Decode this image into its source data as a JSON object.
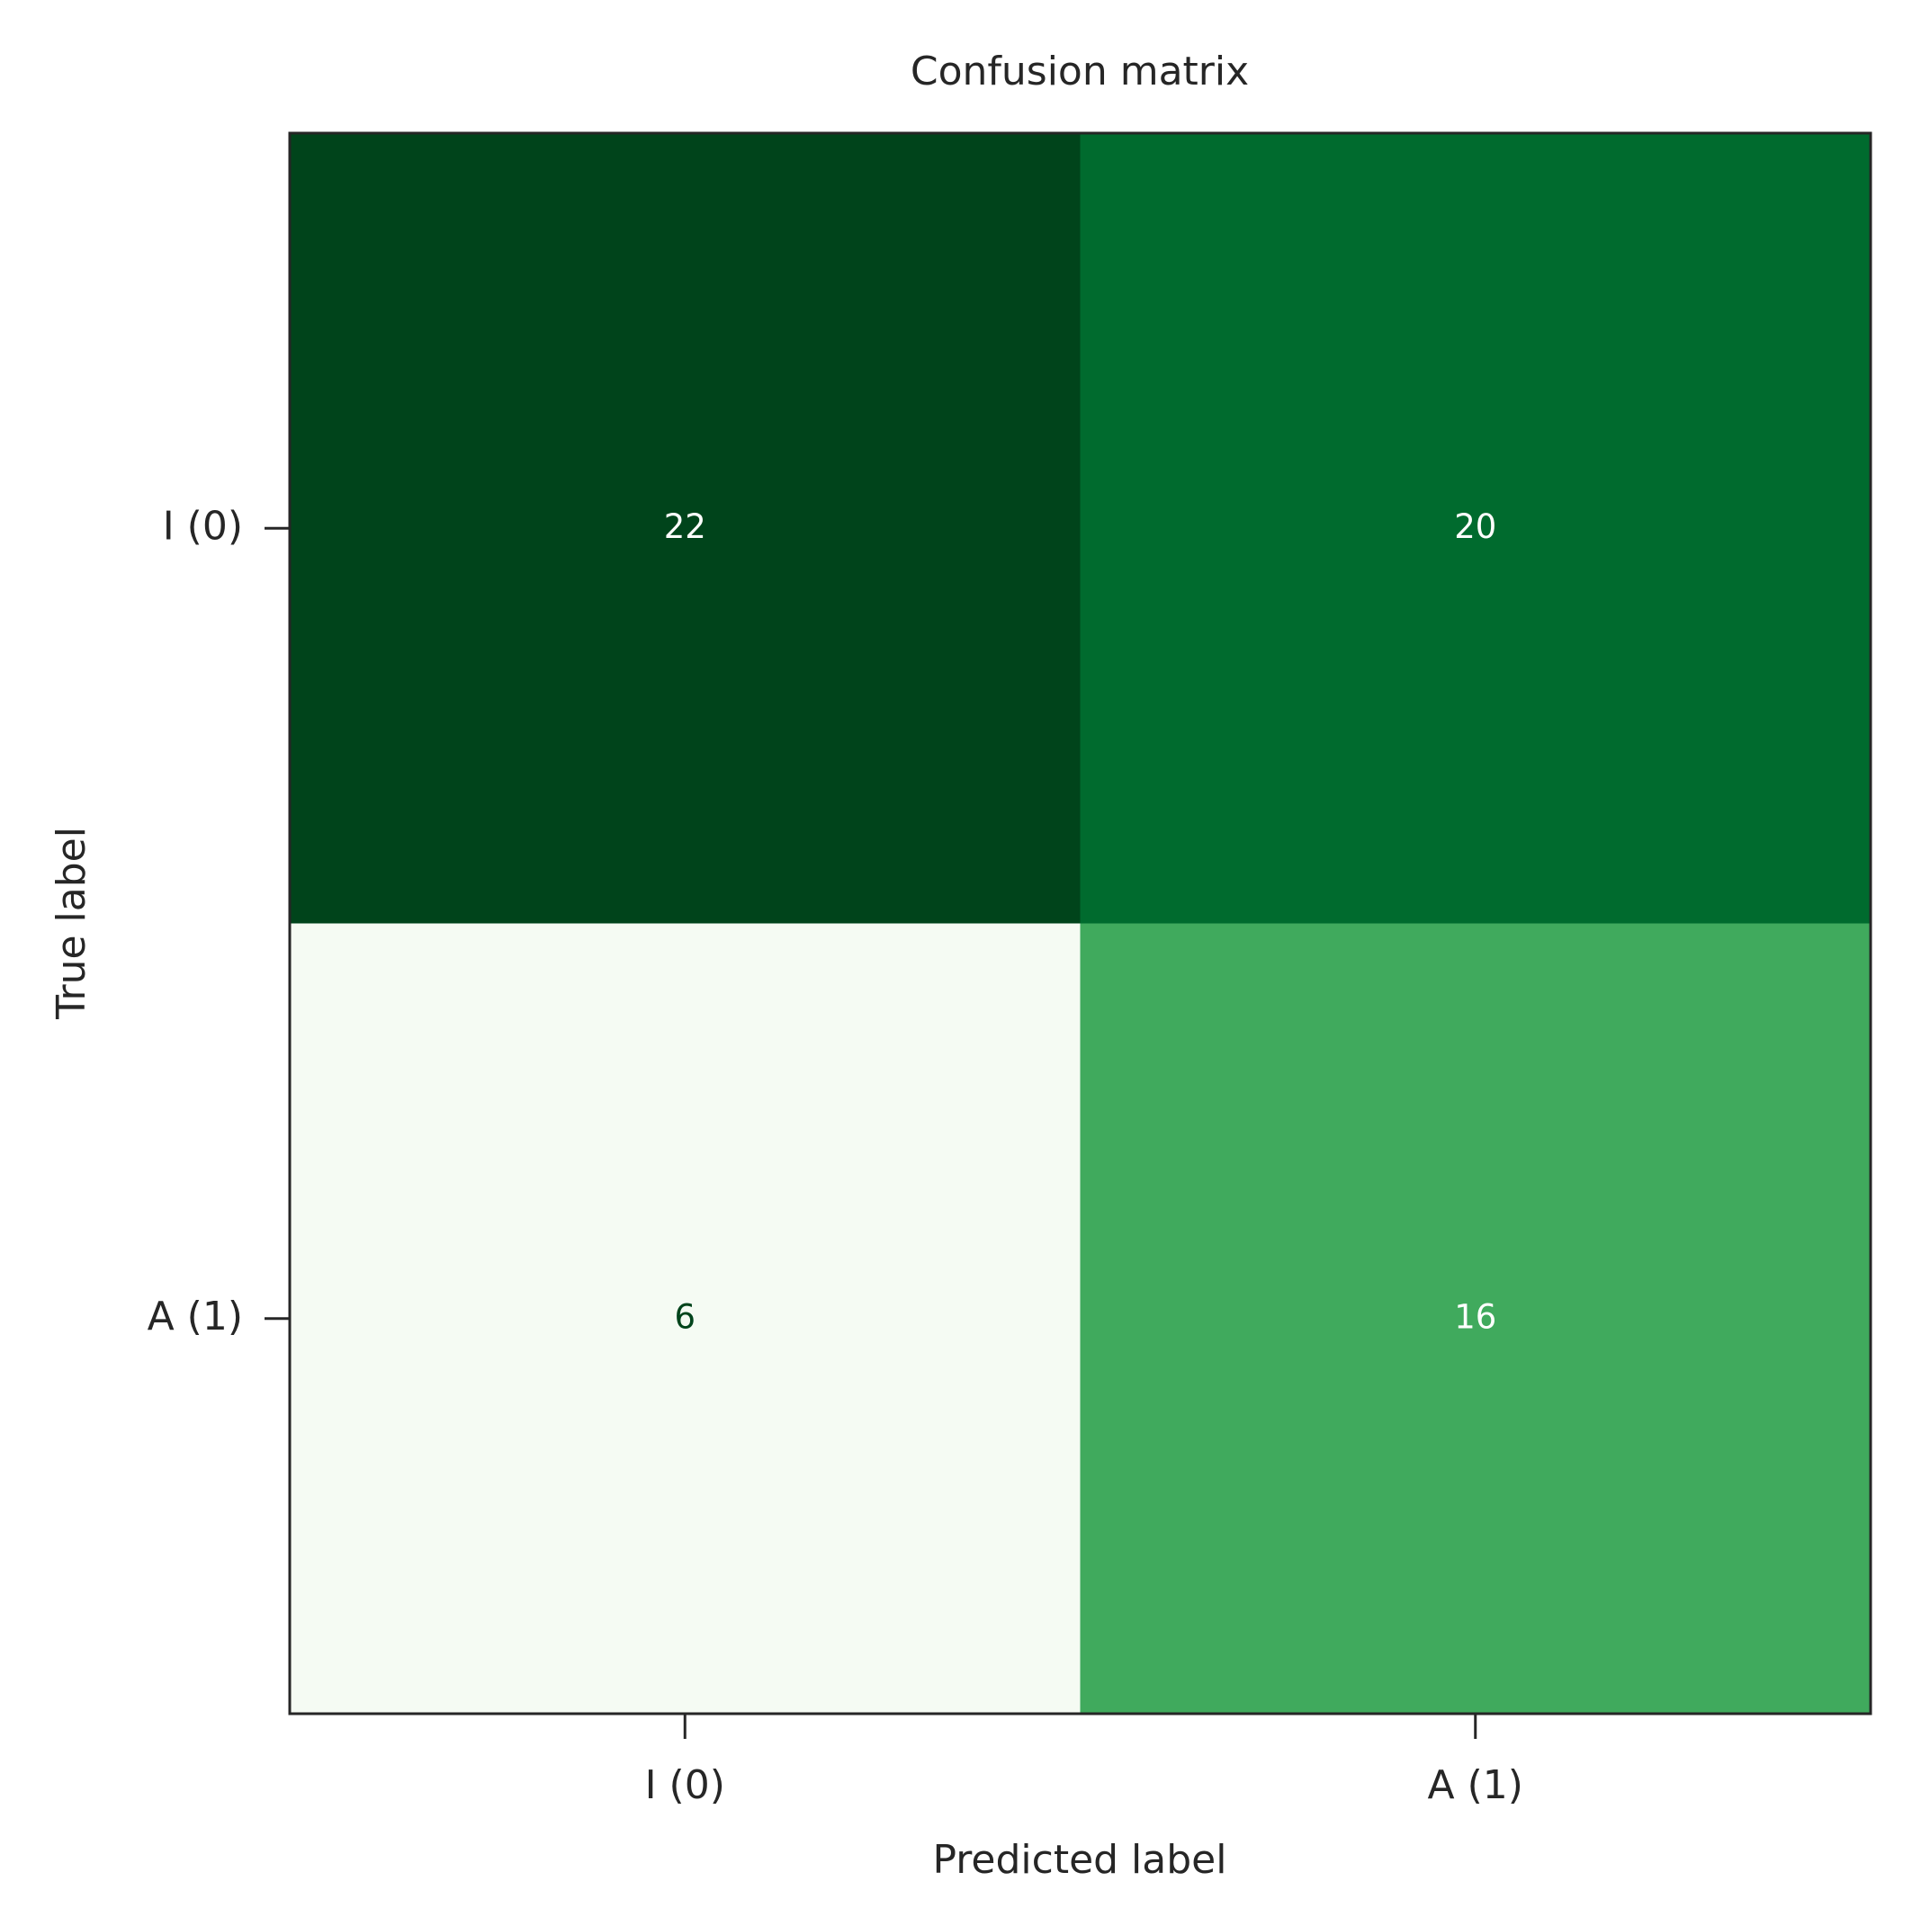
{
  "chart_data": {
    "type": "heatmap",
    "title": "Confusion matrix",
    "xlabel": "Predicted label",
    "ylabel": "True label",
    "x_categories": [
      "I (0)",
      "A (1)"
    ],
    "y_categories": [
      "I (0)",
      "A (1)"
    ],
    "values": [
      [
        22,
        20
      ],
      [
        6,
        16
      ]
    ],
    "colormap": "Greens",
    "color_range": [
      6,
      22
    ],
    "cell_colors": [
      [
        "#00441b",
        "#006b2e"
      ],
      [
        "#f5fbf3",
        "#40aa5d"
      ]
    ],
    "text_colors": [
      [
        "#ffffff",
        "#ffffff"
      ],
      [
        "#00441b",
        "#ffffff"
      ]
    ],
    "grid": false,
    "colorbar": false
  }
}
